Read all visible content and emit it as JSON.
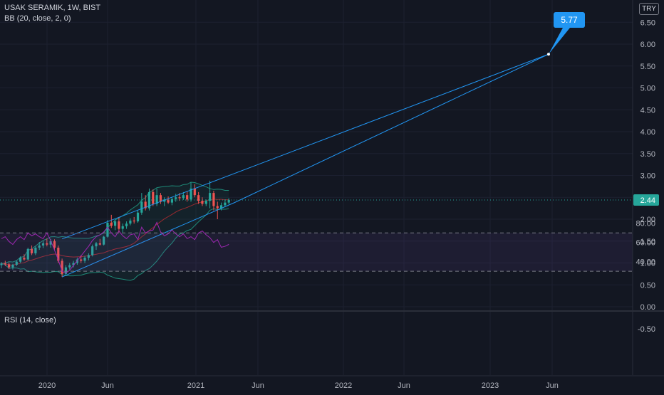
{
  "header": {
    "symbol_line": "USAK SERAMIK, 1W, BIST",
    "indicator_line": "BB (20, close, 2, 0)",
    "currency": "TRY"
  },
  "rsi": {
    "label": "RSI (14, close)"
  },
  "colors": {
    "background": "#131722",
    "up": "#26a69a",
    "down": "#ef5350",
    "bb_band": "#1e8a78",
    "bb_basis": "#9b2a2f",
    "trendline": "#2196f3",
    "rsi_line": "#9c27b0",
    "axis_text": "#b2b5be"
  },
  "chart_data": [
    {
      "type": "line",
      "title": "USAK SERAMIK, 1W, BIST",
      "subtitle": "BB (20, close, 2, 0)",
      "price_axis": {
        "ticks": [
          "-0.50",
          "0.00",
          "0.50",
          "1.00",
          "1.50",
          "2.00",
          "2.50",
          "3.00",
          "3.50",
          "4.00",
          "4.50",
          "5.00",
          "5.50",
          "6.00",
          "6.50"
        ],
        "ylim": [
          -0.5,
          6.5
        ]
      },
      "time_axis": {
        "ticks": [
          "2020",
          "Jun",
          "2021",
          "Jun",
          "2022",
          "Jun",
          "2023",
          "Jun"
        ]
      },
      "last_price": 2.44,
      "target_label": "5.77",
      "target_point": {
        "x": "2023-05",
        "y": 5.77
      },
      "candles": [
        {
          "o": 0.95,
          "h": 1.02,
          "l": 0.88,
          "c": 0.99
        },
        {
          "o": 0.99,
          "h": 1.05,
          "l": 0.93,
          "c": 0.97
        },
        {
          "o": 0.97,
          "h": 1.01,
          "l": 0.86,
          "c": 0.9
        },
        {
          "o": 0.9,
          "h": 0.98,
          "l": 0.85,
          "c": 0.96
        },
        {
          "o": 0.96,
          "h": 1.06,
          "l": 0.93,
          "c": 1.03
        },
        {
          "o": 1.03,
          "h": 1.15,
          "l": 1.0,
          "c": 1.12
        },
        {
          "o": 1.12,
          "h": 1.2,
          "l": 1.05,
          "c": 1.08
        },
        {
          "o": 1.08,
          "h": 1.35,
          "l": 1.06,
          "c": 1.32
        },
        {
          "o": 1.32,
          "h": 1.4,
          "l": 1.18,
          "c": 1.22
        },
        {
          "o": 1.22,
          "h": 1.38,
          "l": 1.18,
          "c": 1.35
        },
        {
          "o": 1.35,
          "h": 1.48,
          "l": 1.3,
          "c": 1.4
        },
        {
          "o": 1.4,
          "h": 1.5,
          "l": 1.34,
          "c": 1.45
        },
        {
          "o": 1.45,
          "h": 1.56,
          "l": 1.38,
          "c": 1.42
        },
        {
          "o": 1.42,
          "h": 1.55,
          "l": 1.35,
          "c": 1.5
        },
        {
          "o": 1.5,
          "h": 1.54,
          "l": 1.3,
          "c": 1.35
        },
        {
          "o": 1.35,
          "h": 1.4,
          "l": 1.0,
          "c": 1.05
        },
        {
          "o": 1.05,
          "h": 1.1,
          "l": 0.68,
          "c": 0.75
        },
        {
          "o": 0.75,
          "h": 0.95,
          "l": 0.7,
          "c": 0.9
        },
        {
          "o": 0.9,
          "h": 1.0,
          "l": 0.85,
          "c": 0.95
        },
        {
          "o": 0.95,
          "h": 1.05,
          "l": 0.9,
          "c": 1.0
        },
        {
          "o": 1.0,
          "h": 1.12,
          "l": 0.96,
          "c": 1.08
        },
        {
          "o": 1.08,
          "h": 1.18,
          "l": 1.0,
          "c": 1.05
        },
        {
          "o": 1.05,
          "h": 1.16,
          "l": 1.0,
          "c": 1.12
        },
        {
          "o": 1.12,
          "h": 1.22,
          "l": 1.06,
          "c": 1.18
        },
        {
          "o": 1.18,
          "h": 1.42,
          "l": 1.15,
          "c": 1.38
        },
        {
          "o": 1.38,
          "h": 1.48,
          "l": 1.3,
          "c": 1.45
        },
        {
          "o": 1.45,
          "h": 1.55,
          "l": 1.4,
          "c": 1.42
        },
        {
          "o": 1.42,
          "h": 1.62,
          "l": 1.4,
          "c": 1.6
        },
        {
          "o": 1.6,
          "h": 1.98,
          "l": 1.58,
          "c": 1.92
        },
        {
          "o": 1.92,
          "h": 2.1,
          "l": 1.8,
          "c": 1.85
        },
        {
          "o": 1.85,
          "h": 2.0,
          "l": 1.75,
          "c": 1.95
        },
        {
          "o": 1.95,
          "h": 2.05,
          "l": 1.7,
          "c": 1.78
        },
        {
          "o": 1.78,
          "h": 1.9,
          "l": 1.7,
          "c": 1.84
        },
        {
          "o": 1.84,
          "h": 1.95,
          "l": 1.78,
          "c": 1.9
        },
        {
          "o": 1.9,
          "h": 2.02,
          "l": 1.86,
          "c": 1.97
        },
        {
          "o": 1.97,
          "h": 2.05,
          "l": 1.9,
          "c": 1.95
        },
        {
          "o": 1.95,
          "h": 2.2,
          "l": 1.92,
          "c": 2.15
        },
        {
          "o": 2.15,
          "h": 2.6,
          "l": 2.1,
          "c": 2.4
        },
        {
          "o": 2.4,
          "h": 2.55,
          "l": 2.2,
          "c": 2.25
        },
        {
          "o": 2.25,
          "h": 2.7,
          "l": 2.2,
          "c": 2.62
        },
        {
          "o": 2.62,
          "h": 2.68,
          "l": 2.3,
          "c": 2.35
        },
        {
          "o": 2.35,
          "h": 2.7,
          "l": 2.3,
          "c": 2.55
        },
        {
          "o": 2.55,
          "h": 2.6,
          "l": 2.35,
          "c": 2.4
        },
        {
          "o": 2.4,
          "h": 2.5,
          "l": 2.3,
          "c": 2.45
        },
        {
          "o": 2.45,
          "h": 2.52,
          "l": 2.35,
          "c": 2.38
        },
        {
          "o": 2.38,
          "h": 2.5,
          "l": 2.32,
          "c": 2.46
        },
        {
          "o": 2.46,
          "h": 2.58,
          "l": 2.4,
          "c": 2.5
        },
        {
          "o": 2.5,
          "h": 2.6,
          "l": 2.42,
          "c": 2.48
        },
        {
          "o": 2.48,
          "h": 2.62,
          "l": 2.44,
          "c": 2.55
        },
        {
          "o": 2.55,
          "h": 2.64,
          "l": 2.4,
          "c": 2.45
        },
        {
          "o": 2.45,
          "h": 2.84,
          "l": 2.4,
          "c": 2.7
        },
        {
          "o": 2.7,
          "h": 2.8,
          "l": 2.5,
          "c": 2.55
        },
        {
          "o": 2.55,
          "h": 2.62,
          "l": 2.35,
          "c": 2.42
        },
        {
          "o": 2.42,
          "h": 2.5,
          "l": 2.3,
          "c": 2.35
        },
        {
          "o": 2.35,
          "h": 2.45,
          "l": 2.3,
          "c": 2.42
        },
        {
          "o": 2.42,
          "h": 2.88,
          "l": 2.25,
          "c": 2.6
        },
        {
          "o": 2.6,
          "h": 2.65,
          "l": 2.2,
          "c": 2.3
        },
        {
          "o": 2.3,
          "h": 2.4,
          "l": 2.0,
          "c": 2.25
        },
        {
          "o": 2.25,
          "h": 2.38,
          "l": 2.2,
          "c": 2.32
        },
        {
          "o": 2.32,
          "h": 2.45,
          "l": 2.28,
          "c": 2.38
        },
        {
          "o": 2.38,
          "h": 2.48,
          "l": 2.34,
          "c": 2.44
        }
      ],
      "rsi_axis": {
        "ticks": [
          "40.00",
          "60.00",
          "80.00"
        ],
        "ylim": [
          30,
          83
        ],
        "bands": [
          30,
          70
        ]
      },
      "rsi_values": [
        64,
        66,
        61,
        58,
        63,
        66,
        63,
        70,
        67,
        69,
        66,
        64,
        70,
        62,
        52,
        42,
        30,
        28,
        31,
        36,
        41,
        46,
        51,
        56,
        62,
        66,
        68,
        71,
        76,
        70,
        66,
        72,
        67,
        64,
        68,
        69,
        63,
        76,
        70,
        72,
        73,
        81,
        71,
        67,
        69,
        73,
        69,
        66,
        69,
        64,
        66,
        63,
        70,
        72,
        68,
        65,
        60,
        63,
        55,
        56,
        58
      ]
    }
  ]
}
